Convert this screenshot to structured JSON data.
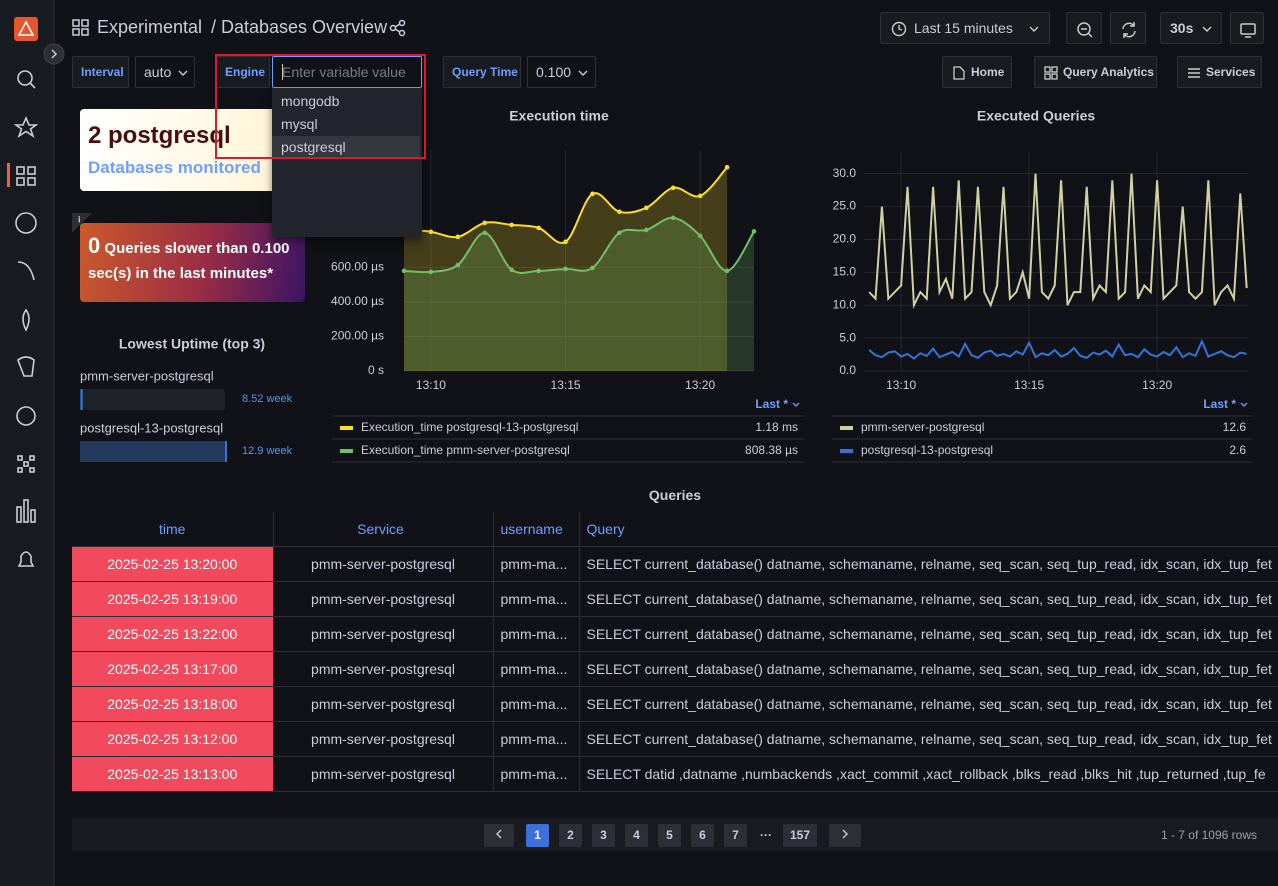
{
  "nav": {
    "breadcrumb": "Experimental",
    "title": "/ Databases Overview",
    "time_range": "Last 15 minutes",
    "refresh": "30s"
  },
  "variables": {
    "interval": {
      "label": "Interval",
      "value": "auto"
    },
    "engine": {
      "label": "Engine",
      "placeholder": "Enter variable value",
      "options": [
        "mongodb",
        "mysql",
        "postgresql"
      ]
    },
    "query_time": {
      "label": "Query Time",
      "value": "0.100"
    }
  },
  "links": [
    "Home",
    "Query Analytics",
    "Services"
  ],
  "stat_databases": {
    "value": "2 postgresql",
    "label": "Databases monitored"
  },
  "stat_slow": {
    "value": 0,
    "label": "Queries slower than 0.100 sec(s) in the last minutes*"
  },
  "chart_data": [
    {
      "type": "bar",
      "title": "Lowest Uptime (top 3)",
      "categories": [
        "pmm-server-postgresql",
        "postgresql-13-postgresql"
      ],
      "values": [
        8.52,
        12.9
      ],
      "value_labels": [
        "8.52 week",
        "12.9 week"
      ],
      "xlim": [
        8.5,
        12.9
      ],
      "color": "#3274d9"
    },
    {
      "type": "line",
      "title": "Execution time",
      "smooth": true,
      "show_points": true,
      "fill_opacity": 0.22,
      "grid": true,
      "x": [
        9,
        10,
        11,
        12,
        13,
        14,
        15,
        16,
        17,
        18,
        19,
        20,
        21,
        22
      ],
      "xlim": [
        9,
        22
      ],
      "xticks": [
        {
          "value": 10,
          "label": "13:10"
        },
        {
          "value": 15,
          "label": "13:15"
        },
        {
          "value": 20,
          "label": "13:20"
        }
      ],
      "ylim": [
        0,
        1280
      ],
      "yticks": [
        {
          "value": 0,
          "label": "0 s"
        },
        {
          "value": 200,
          "label": "200.00 µs"
        },
        {
          "value": 400,
          "label": "400.00 µs"
        },
        {
          "value": 600,
          "label": "600.00 µs"
        }
      ],
      "legend_header": "Last *",
      "series": [
        {
          "name": "Execution_time postgresql-13-postgresql",
          "color": "#fade2a",
          "legend_value": "1.18 ms",
          "values": [
            823,
            806,
            777,
            858,
            846,
            829,
            748,
            1026,
            922,
            945,
            1061,
            1014,
            1180,
            null
          ]
        },
        {
          "name": "Execution_time pmm-server-postgresql",
          "color": "#73bf69",
          "legend_value": "808.38 µs",
          "values": [
            580,
            574,
            614,
            800,
            586,
            580,
            591,
            597,
            800,
            817,
            887,
            783,
            580,
            808.38
          ]
        }
      ]
    },
    {
      "type": "line",
      "title": "Executed Queries",
      "smooth": false,
      "show_points": false,
      "fill_opacity": 0,
      "grid": true,
      "x": [
        8.75,
        9,
        9.25,
        9.5,
        9.75,
        10,
        10.25,
        10.5,
        10.75,
        11,
        11.25,
        11.5,
        11.75,
        12,
        12.25,
        12.5,
        12.75,
        13,
        13.25,
        13.5,
        13.75,
        14,
        14.25,
        14.5,
        14.75,
        15,
        15.25,
        15.5,
        15.75,
        16,
        16.25,
        16.5,
        16.75,
        17,
        17.25,
        17.5,
        17.75,
        18,
        18.25,
        18.5,
        18.75,
        19,
        19.25,
        19.5,
        19.75,
        20,
        20.25,
        20.5,
        20.75,
        21,
        21.25,
        21.5,
        21.75,
        22,
        22.25,
        22.5,
        22.75,
        23,
        23.25,
        23.5
      ],
      "xlim": [
        8.55,
        23.55
      ],
      "xticks": [
        {
          "value": 10,
          "label": "13:10"
        },
        {
          "value": 15,
          "label": "13:15"
        },
        {
          "value": 20,
          "label": "13:20"
        }
      ],
      "ylim": [
        0,
        33.6
      ],
      "yticks": [
        {
          "value": 0,
          "label": "0.0"
        },
        {
          "value": 5,
          "label": "5.0"
        },
        {
          "value": 10,
          "label": "10.0"
        },
        {
          "value": 15,
          "label": "15.0"
        },
        {
          "value": 20,
          "label": "20.0"
        },
        {
          "value": 25,
          "label": "25.0"
        },
        {
          "value": 30,
          "label": "30.0"
        }
      ],
      "legend_header": "Last *",
      "series": [
        {
          "name": "pmm-server-postgresql",
          "color": "#cfd0a4",
          "legend_value": "12.6",
          "values": [
            12,
            11,
            25,
            11,
            12,
            13,
            28,
            10,
            12,
            11,
            28,
            12,
            14,
            11,
            29,
            11,
            12,
            28,
            12,
            10,
            13,
            28,
            11,
            12,
            15,
            11,
            30,
            12,
            11,
            13,
            29,
            10,
            12,
            12,
            28,
            11,
            13,
            12,
            29,
            11,
            12,
            30,
            11,
            13,
            12,
            29,
            11,
            12,
            13,
            25,
            12,
            11,
            12,
            29,
            10,
            12,
            13,
            11,
            27,
            12.6
          ]
        },
        {
          "name": "postgresql-13-postgresql",
          "color": "#3274d9",
          "legend_value": "2.6",
          "values": [
            3.2,
            2.4,
            2.1,
            2.8,
            3.0,
            2.2,
            2.6,
            1.9,
            2.7,
            2.3,
            3.4,
            2.1,
            2.5,
            2.9,
            2.2,
            4.1,
            2.4,
            2.0,
            2.8,
            3.1,
            2.3,
            2.6,
            2.2,
            3.0,
            2.5,
            4.3,
            2.1,
            2.7,
            2.4,
            3.2,
            2.2,
            2.6,
            3.5,
            2.3,
            2.0,
            2.8,
            2.5,
            3.1,
            2.2,
            4.0,
            2.4,
            2.6,
            2.1,
            3.3,
            2.5,
            2.2,
            2.9,
            2.4,
            3.6,
            2.1,
            2.7,
            2.3,
            4.5,
            2.2,
            2.6,
            3.0,
            2.4,
            2.1,
            2.8,
            2.6
          ]
        }
      ]
    }
  ],
  "queries_table": {
    "title": "Queries",
    "columns": [
      "time",
      "Service",
      "username",
      "Query"
    ],
    "rows": [
      [
        "2025-02-25 13:20:00",
        "pmm-server-postgresql",
        "pmm-ma...",
        "SELECT current_database() datname, schemaname, relname, seq_scan, seq_tup_read, idx_scan, idx_tup_fet"
      ],
      [
        "2025-02-25 13:19:00",
        "pmm-server-postgresql",
        "pmm-ma...",
        "SELECT current_database() datname, schemaname, relname, seq_scan, seq_tup_read, idx_scan, idx_tup_fet"
      ],
      [
        "2025-02-25 13:22:00",
        "pmm-server-postgresql",
        "pmm-ma...",
        "SELECT current_database() datname, schemaname, relname, seq_scan, seq_tup_read, idx_scan, idx_tup_fet"
      ],
      [
        "2025-02-25 13:17:00",
        "pmm-server-postgresql",
        "pmm-ma...",
        "SELECT current_database() datname, schemaname, relname, seq_scan, seq_tup_read, idx_scan, idx_tup_fet"
      ],
      [
        "2025-02-25 13:18:00",
        "pmm-server-postgresql",
        "pmm-ma...",
        "SELECT current_database() datname, schemaname, relname, seq_scan, seq_tup_read, idx_scan, idx_tup_fet"
      ],
      [
        "2025-02-25 13:12:00",
        "pmm-server-postgresql",
        "pmm-ma...",
        "SELECT current_database() datname, schemaname, relname, seq_scan, seq_tup_read, idx_scan, idx_tup_fet"
      ],
      [
        "2025-02-25 13:13:00",
        "pmm-server-postgresql",
        "pmm-ma...",
        "SELECT datid ,datname ,numbackends ,xact_commit ,xact_rollback ,blks_read ,blks_hit ,tup_returned ,tup_fe"
      ]
    ]
  },
  "pagination": {
    "pages": [
      "1",
      "2",
      "3",
      "4",
      "5",
      "6",
      "7",
      "···",
      "157"
    ],
    "summary": "1 - 7 of 1096 rows"
  }
}
